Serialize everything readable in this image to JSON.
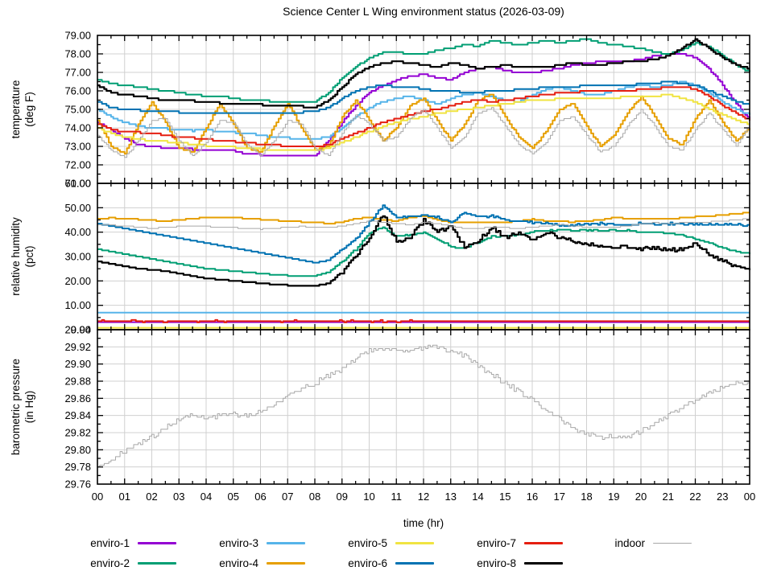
{
  "title": "Science Center L Wing environment status (2026-03-09)",
  "x_axis": {
    "label": "time (hr)",
    "start": 0,
    "step": 0.5,
    "max": 24,
    "tick_labels": [
      "00",
      "01",
      "02",
      "03",
      "04",
      "05",
      "06",
      "07",
      "08",
      "09",
      "10",
      "11",
      "12",
      "13",
      "14",
      "15",
      "16",
      "17",
      "18",
      "19",
      "20",
      "21",
      "22",
      "23",
      "00"
    ]
  },
  "colors": {
    "enviro-1": "#9400d3",
    "enviro-2": "#009e73",
    "enviro-3": "#56b4e9",
    "enviro-4": "#e69f00",
    "enviro-5": "#f0e442",
    "enviro-6": "#0072b2",
    "enviro-7": "#e51e10",
    "enviro-8": "#000000",
    "indoor": "#a8a8a8",
    "grid": "#d0d0d0",
    "border": "#000000"
  },
  "legend": {
    "entries": [
      {
        "label": "enviro-1",
        "color": "#9400d3",
        "lw": 3
      },
      {
        "label": "enviro-2",
        "color": "#009e73",
        "lw": 3
      },
      {
        "label": "enviro-3",
        "color": "#56b4e9",
        "lw": 3
      },
      {
        "label": "enviro-4",
        "color": "#e69f00",
        "lw": 3
      },
      {
        "label": "enviro-5",
        "color": "#f0e442",
        "lw": 3
      },
      {
        "label": "enviro-6",
        "color": "#0072b2",
        "lw": 3
      },
      {
        "label": "enviro-7",
        "color": "#e51e10",
        "lw": 3
      },
      {
        "label": "enviro-8",
        "color": "#000000",
        "lw": 3
      },
      {
        "label": "indoor",
        "color": "#a8a8a8",
        "lw": 1
      }
    ]
  },
  "chart_data": [
    {
      "type": "line",
      "panel": "temperature",
      "ylabel_lines": [
        "temperature",
        "(deg F)"
      ],
      "ylim": [
        71,
        79
      ],
      "ytick": 1,
      "yminor": 0.5,
      "grid": true,
      "series": [
        {
          "name": "enviro-1",
          "lw": 2,
          "quant": 0.1,
          "values": [
            74.3,
            73.9,
            73.4,
            73.1,
            73.0,
            72.9,
            72.9,
            72.85,
            72.8,
            72.8,
            72.75,
            72.6,
            72.55,
            72.5,
            72.5,
            72.45,
            72.5,
            73.3,
            74.3,
            75.2,
            75.9,
            76.3,
            76.6,
            76.8,
            76.9,
            76.7,
            76.6,
            77.0,
            77.2,
            77.3,
            77.1,
            77.0,
            77.0,
            77.1,
            77.2,
            77.4,
            77.5,
            77.6,
            77.6,
            77.6,
            77.7,
            77.9,
            78.0,
            78.0,
            77.8,
            77.2,
            76.3,
            75.3,
            74.4
          ]
        },
        {
          "name": "enviro-2",
          "lw": 2,
          "quant": 0.1,
          "values": [
            76.6,
            76.4,
            76.3,
            76.2,
            76.1,
            76.0,
            75.9,
            75.8,
            75.7,
            75.7,
            75.6,
            75.5,
            75.5,
            75.4,
            75.4,
            75.4,
            75.4,
            75.9,
            76.7,
            77.3,
            77.8,
            78.1,
            78.1,
            78.0,
            78.0,
            78.2,
            78.3,
            78.5,
            78.4,
            78.7,
            78.6,
            78.5,
            78.6,
            78.7,
            78.6,
            78.7,
            78.8,
            78.6,
            78.5,
            78.4,
            78.3,
            78.1,
            78.0,
            78.2,
            78.6,
            78.4,
            77.9,
            77.4,
            77.0
          ]
        },
        {
          "name": "enviro-3",
          "lw": 2,
          "quant": 0.1,
          "values": [
            75.0,
            74.6,
            74.3,
            74.1,
            74.0,
            73.95,
            73.9,
            73.85,
            73.9,
            73.8,
            73.75,
            73.7,
            73.6,
            73.5,
            73.45,
            73.4,
            73.4,
            73.5,
            74.0,
            74.6,
            75.1,
            75.4,
            75.6,
            75.7,
            75.5,
            75.3,
            75.6,
            75.8,
            75.9,
            75.7,
            75.5,
            75.4,
            75.8,
            76.1,
            76.2,
            76.0,
            75.8,
            75.8,
            76.0,
            76.2,
            76.3,
            76.2,
            76.3,
            76.5,
            76.3,
            75.9,
            75.4,
            75.0,
            74.7
          ]
        },
        {
          "name": "enviro-4",
          "lw": 2,
          "quant": 0.1,
          "values": [
            74.4,
            73.0,
            72.6,
            74.2,
            75.4,
            74.3,
            72.9,
            72.7,
            74.0,
            75.3,
            74.2,
            72.9,
            72.7,
            74.1,
            75.3,
            74.0,
            72.8,
            73.0,
            74.6,
            75.5,
            74.4,
            73.3,
            74.0,
            75.2,
            75.6,
            74.4,
            73.3,
            74.2,
            75.5,
            75.8,
            74.6,
            73.5,
            72.9,
            73.8,
            75.0,
            75.3,
            74.1,
            73.0,
            73.6,
            74.8,
            75.7,
            74.6,
            73.4,
            73.1,
            74.5,
            75.5,
            74.3,
            73.3,
            74.0
          ]
        },
        {
          "name": "enviro-5",
          "lw": 2,
          "quant": 0.1,
          "values": [
            74.0,
            73.7,
            73.5,
            73.4,
            73.3,
            73.25,
            73.2,
            73.1,
            73.05,
            73.0,
            72.95,
            72.9,
            72.85,
            72.8,
            72.8,
            72.75,
            72.8,
            72.9,
            73.2,
            73.5,
            73.8,
            74.1,
            74.3,
            74.5,
            74.6,
            74.8,
            74.9,
            75.0,
            75.1,
            75.2,
            75.3,
            75.4,
            75.5,
            75.5,
            75.6,
            75.6,
            75.6,
            75.6,
            75.6,
            75.7,
            75.7,
            75.7,
            75.8,
            75.6,
            75.4,
            75.0,
            74.7,
            74.4,
            74.2
          ]
        },
        {
          "name": "enviro-6",
          "lw": 2,
          "quant": 0.1,
          "values": [
            75.4,
            75.1,
            75.0,
            74.95,
            74.9,
            74.9,
            74.85,
            74.85,
            74.85,
            74.85,
            74.85,
            74.85,
            74.85,
            74.85,
            74.85,
            74.85,
            74.9,
            75.1,
            75.6,
            76.0,
            76.2,
            76.3,
            76.2,
            76.2,
            76.1,
            76.0,
            76.0,
            75.9,
            75.9,
            76.0,
            76.0,
            76.1,
            76.1,
            76.2,
            76.2,
            76.2,
            76.3,
            76.3,
            76.3,
            76.3,
            76.4,
            76.4,
            76.5,
            76.4,
            76.3,
            76.0,
            75.7,
            75.4,
            75.3
          ]
        },
        {
          "name": "enviro-7",
          "lw": 2,
          "quant": 0.1,
          "values": [
            74.2,
            73.9,
            73.8,
            73.75,
            73.7,
            73.6,
            73.5,
            73.45,
            73.4,
            73.3,
            73.25,
            73.2,
            73.1,
            73.1,
            73.0,
            73.0,
            73.0,
            73.1,
            73.4,
            73.7,
            74.0,
            74.3,
            74.5,
            74.7,
            74.9,
            75.0,
            75.2,
            75.4,
            75.5,
            75.4,
            75.5,
            75.6,
            75.7,
            75.8,
            75.9,
            75.9,
            76.0,
            76.0,
            76.0,
            76.0,
            76.1,
            76.1,
            76.2,
            76.2,
            76.1,
            75.7,
            75.2,
            74.8,
            74.4
          ]
        },
        {
          "name": "enviro-8",
          "lw": 2.2,
          "quant": 0.1,
          "values": [
            76.3,
            75.9,
            75.8,
            75.7,
            75.6,
            75.5,
            75.5,
            75.45,
            75.4,
            75.35,
            75.3,
            75.3,
            75.25,
            75.2,
            75.2,
            75.15,
            75.1,
            75.5,
            76.2,
            76.9,
            77.3,
            77.5,
            77.6,
            77.5,
            77.4,
            77.3,
            77.5,
            77.4,
            77.2,
            77.3,
            77.4,
            77.3,
            77.3,
            77.3,
            77.4,
            77.5,
            77.4,
            77.4,
            77.5,
            77.6,
            77.6,
            77.7,
            77.9,
            78.3,
            78.8,
            78.3,
            77.8,
            77.4,
            77.2
          ]
        },
        {
          "name": "indoor",
          "lw": 1,
          "quant": 0.1,
          "values": [
            73.6,
            72.8,
            72.4,
            73.3,
            74.4,
            74.5,
            73.3,
            72.5,
            73.2,
            74.4,
            74.3,
            73.1,
            72.5,
            73.3,
            74.4,
            74.2,
            72.9,
            72.5,
            73.7,
            74.7,
            74.2,
            73.3,
            73.5,
            74.5,
            75.0,
            74.0,
            72.9,
            73.5,
            74.8,
            75.1,
            74.1,
            73.1,
            72.6,
            73.2,
            74.4,
            74.6,
            73.6,
            72.7,
            73.0,
            74.1,
            75.0,
            74.1,
            73.0,
            72.8,
            73.9,
            74.8,
            73.9,
            73.0,
            74.2
          ]
        }
      ]
    },
    {
      "type": "line",
      "panel": "relative humidity",
      "ylabel_lines": [
        "relative humidity",
        "(pct)"
      ],
      "ylim": [
        0,
        60
      ],
      "ytick": 10,
      "yminor": 5,
      "grid": true,
      "series": [
        {
          "name": "enviro-1",
          "lw": 2,
          "flat": 3.1
        },
        {
          "name": "enviro-2",
          "lw": 2,
          "quant": 0.5,
          "noise": 0.3,
          "noise_from": 9,
          "values": [
            33.0,
            32.0,
            31.0,
            30.0,
            29.0,
            28.0,
            27.0,
            26.0,
            25.0,
            24.5,
            24.0,
            23.5,
            23.0,
            22.5,
            22.2,
            22.0,
            22.0,
            23.5,
            28.0,
            33.0,
            40.0,
            42.0,
            38.0,
            39.0,
            40.0,
            37.0,
            34.0,
            33.5,
            36.0,
            38.0,
            38.5,
            39.0,
            40.0,
            40.5,
            41.0,
            40.5,
            41.0,
            40.5,
            41.0,
            40.5,
            40.0,
            40.0,
            39.5,
            39.0,
            37.0,
            35.5,
            33.5,
            32.0,
            31.0
          ]
        },
        {
          "name": "enviro-3",
          "lw": 2,
          "flat": 7.0
        },
        {
          "name": "enviro-4",
          "lw": 2,
          "quant": 0.5,
          "values": [
            45.5,
            45.8,
            45.5,
            45.2,
            44.8,
            44.5,
            45.0,
            45.5,
            46.0,
            46.2,
            46.0,
            45.5,
            45.2,
            44.8,
            44.5,
            44.2,
            44.0,
            43.6,
            44.0,
            45.5,
            46.0,
            45.0,
            44.5,
            46.0,
            46.5,
            45.0,
            44.0,
            43.8,
            44.0,
            44.2,
            44.0,
            44.5,
            45.3,
            44.6,
            44.3,
            44.2,
            44.5,
            45.0,
            46.0,
            45.5,
            45.3,
            45.3,
            45.5,
            45.8,
            46.3,
            46.5,
            47.0,
            47.5,
            48.0
          ]
        },
        {
          "name": "enviro-5",
          "lw": 2,
          "flat": 0.8
        },
        {
          "name": "enviro-6",
          "lw": 2,
          "quant": 0.5,
          "noise": 0.4,
          "noise_from": 9,
          "values": [
            43.5,
            42.5,
            41.5,
            40.5,
            39.5,
            38.5,
            37.5,
            36.5,
            35.5,
            34.5,
            33.5,
            32.5,
            31.5,
            30.5,
            29.5,
            28.5,
            27.5,
            28.5,
            33.0,
            37.0,
            44.0,
            51.0,
            46.0,
            46.5,
            47.0,
            46.0,
            44.0,
            48.0,
            46.0,
            46.5,
            45.0,
            44.5,
            44.0,
            43.5,
            43.0,
            43.0,
            43.2,
            43.5,
            43.0,
            43.0,
            43.5,
            43.2,
            43.5,
            43.0,
            43.2,
            43.0,
            43.2,
            43.0,
            43.0
          ]
        },
        {
          "name": "enviro-7",
          "lw": 2,
          "flat": 3.5,
          "noise": 0.3,
          "quant": 0.5
        },
        {
          "name": "enviro-8",
          "lw": 2.2,
          "quant": 0.5,
          "noise": 0.8,
          "noise_from": 9,
          "values": [
            28.0,
            27.0,
            26.0,
            25.0,
            24.5,
            24.0,
            23.0,
            22.0,
            21.0,
            20.5,
            20.0,
            19.5,
            19.0,
            18.5,
            18.2,
            18.0,
            18.0,
            19.0,
            24.0,
            30.0,
            38.0,
            47.0,
            36.0,
            38.0,
            45.0,
            40.0,
            42.0,
            34.0,
            36.0,
            42.0,
            38.0,
            40.0,
            37.0,
            40.0,
            38.0,
            36.0,
            35.5,
            34.0,
            33.5,
            34.0,
            33.0,
            33.5,
            32.5,
            33.0,
            35.0,
            31.0,
            28.5,
            26.0,
            24.5
          ]
        },
        {
          "name": "indoor",
          "lw": 1,
          "quant": 0.5,
          "values": [
            43.0,
            42.8,
            42.5,
            42.0,
            41.5,
            42.0,
            42.3,
            42.5,
            42.3,
            42.0,
            41.8,
            41.5,
            41.2,
            41.5,
            42.0,
            42.3,
            42.0,
            41.8,
            42.5,
            43.5,
            44.5,
            44.0,
            43.5,
            43.0,
            44.0,
            43.5,
            42.5,
            41.5,
            41.5,
            42.0,
            41.8,
            41.5,
            42.0,
            42.5,
            43.0,
            42.5,
            42.0,
            41.8,
            42.0,
            42.5,
            43.5,
            43.8,
            43.5,
            43.8,
            44.0,
            44.2,
            44.5,
            45.0,
            45.5
          ]
        }
      ]
    },
    {
      "type": "line",
      "panel": "barometric pressure",
      "ylabel_lines": [
        "barometric pressure",
        "(in Hg)"
      ],
      "ylim": [
        29.76,
        29.94
      ],
      "ytick": 0.02,
      "yminor": 0.01,
      "grid": true,
      "series": [
        {
          "name": "indoor",
          "lw": 1,
          "quant": 0.002,
          "noise": 0.003,
          "values": [
            29.78,
            29.788,
            29.798,
            29.808,
            29.816,
            29.826,
            29.836,
            29.84,
            29.838,
            29.84,
            29.842,
            29.84,
            29.846,
            29.854,
            29.864,
            29.872,
            29.878,
            29.886,
            29.894,
            29.906,
            29.915,
            29.918,
            29.916,
            29.914,
            29.918,
            29.92,
            29.916,
            29.91,
            29.898,
            29.888,
            29.878,
            29.868,
            29.858,
            29.846,
            29.835,
            29.825,
            29.818,
            29.816,
            29.815,
            29.817,
            29.822,
            29.83,
            29.84,
            29.85,
            29.858,
            29.866,
            29.872,
            29.877,
            29.876
          ]
        }
      ]
    }
  ]
}
